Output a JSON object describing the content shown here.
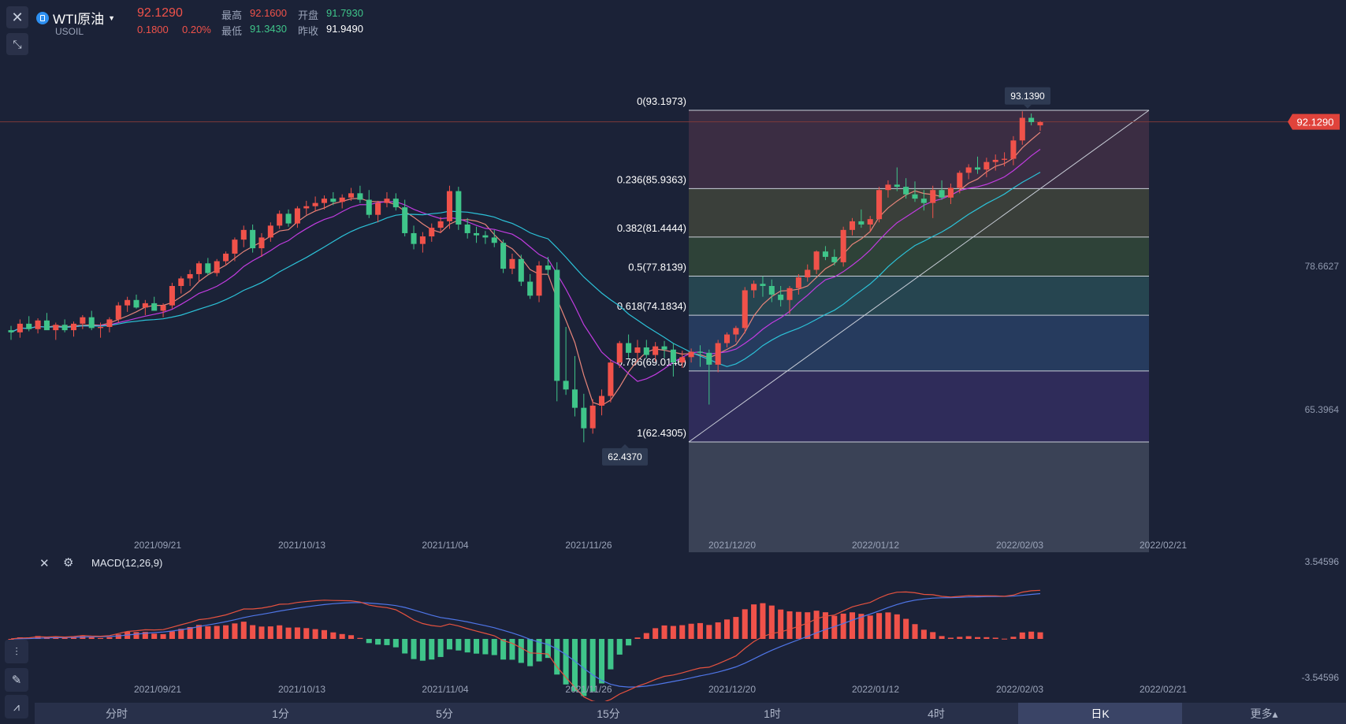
{
  "header": {
    "symbol": "WTI原油",
    "code": "USOIL",
    "price": "92.1290",
    "change": "0.1800",
    "change_pct": "0.20%",
    "high_label": "最高",
    "high": "92.1600",
    "open_label": "开盘",
    "open": "91.7930",
    "low_label": "最低",
    "low": "91.3430",
    "prev_label": "昨收",
    "prev": "91.9490"
  },
  "colors": {
    "background": "#1b2237",
    "up": "#f0524a",
    "down": "#3fc58a",
    "ma_fast": "#e7857a",
    "ma_mid": "#c13ce0",
    "ma_slow": "#2cc2d8",
    "macd_dif": "#e6523f",
    "macd_dea": "#4f76e8"
  },
  "fib": {
    "levels": [
      {
        "label": "0(93.1973)",
        "value": 93.1973
      },
      {
        "label": "0.236(85.9363)",
        "value": 85.9363
      },
      {
        "label": "0.382(81.4444)",
        "value": 81.4444
      },
      {
        "label": "0.5(77.8139)",
        "value": 77.8139
      },
      {
        "label": "0.618(74.1834)",
        "value": 74.1834
      },
      {
        "label": "0.786(69.0146)",
        "value": 69.0146
      },
      {
        "label": "1(62.4305)",
        "value": 62.4305
      }
    ]
  },
  "annotations": {
    "high_marker": "93.1390",
    "low_marker": "62.4370",
    "last_price_tag": "92.1290"
  },
  "price_axis": {
    "ticks": [
      "78.6627",
      "65.3964"
    ]
  },
  "macd": {
    "title": "MACD(12,26,9)",
    "axis_top": "3.54596",
    "axis_bottom": "-3.54596"
  },
  "date_axis": [
    "2021/09/21",
    "2021/10/13",
    "2021/11/04",
    "2021/11/26",
    "2021/12/20",
    "2022/01/12",
    "2022/02/03",
    "2022/02/21"
  ],
  "timeframes": [
    "分时",
    "1分",
    "5分",
    "15分",
    "1时",
    "4时",
    "日K",
    "更多▴"
  ],
  "active_timeframe": "日K",
  "chart_data": {
    "type": "candlestick",
    "series": [
      {
        "name": "USOIL",
        "values": [
          [
            72.8,
            73.2,
            71.9,
            72.6
          ],
          [
            72.6,
            73.8,
            72.1,
            73.4
          ],
          [
            73.4,
            74.1,
            72.7,
            72.9
          ],
          [
            72.9,
            73.9,
            72.5,
            73.7
          ],
          [
            73.7,
            74.4,
            72.9,
            72.8
          ],
          [
            72.8,
            73.5,
            71.9,
            73.3
          ],
          [
            73.3,
            73.8,
            72.6,
            72.8
          ],
          [
            72.8,
            73.6,
            72.2,
            73.4
          ],
          [
            73.4,
            74.2,
            72.9,
            74.0
          ],
          [
            74.0,
            74.6,
            72.8,
            73.0
          ],
          [
            73.0,
            73.5,
            72.1,
            73.1
          ],
          [
            73.1,
            74.0,
            72.6,
            73.8
          ],
          [
            73.8,
            75.4,
            73.5,
            75.1
          ],
          [
            75.1,
            75.9,
            74.5,
            75.6
          ],
          [
            75.6,
            76.1,
            74.8,
            74.9
          ],
          [
            74.9,
            75.6,
            74.2,
            75.3
          ],
          [
            75.3,
            75.9,
            74.7,
            74.6
          ],
          [
            74.6,
            75.3,
            74.0,
            75.1
          ],
          [
            75.1,
            77.2,
            74.8,
            76.9
          ],
          [
            76.9,
            77.8,
            76.2,
            77.6
          ],
          [
            77.6,
            78.4,
            76.9,
            78.0
          ],
          [
            78.0,
            79.2,
            77.3,
            79.0
          ],
          [
            79.0,
            79.5,
            77.9,
            78.1
          ],
          [
            78.1,
            79.4,
            77.8,
            79.2
          ],
          [
            79.2,
            80.1,
            78.8,
            79.9
          ],
          [
            79.9,
            81.4,
            79.2,
            81.2
          ],
          [
            81.2,
            82.5,
            80.5,
            82.1
          ],
          [
            82.1,
            82.6,
            80.0,
            80.4
          ],
          [
            80.4,
            81.8,
            79.6,
            81.4
          ],
          [
            81.4,
            82.8,
            81.0,
            82.5
          ],
          [
            82.5,
            83.9,
            82.2,
            83.6
          ],
          [
            83.6,
            84.0,
            82.4,
            82.7
          ],
          [
            82.7,
            84.3,
            82.3,
            84.1
          ],
          [
            84.1,
            84.8,
            83.5,
            84.3
          ],
          [
            84.3,
            85.2,
            83.8,
            84.6
          ],
          [
            84.6,
            85.3,
            84.0,
            85.0
          ],
          [
            85.0,
            85.6,
            84.4,
            84.7
          ],
          [
            84.7,
            85.4,
            84.1,
            85.1
          ],
          [
            85.1,
            86.0,
            84.8,
            85.5
          ],
          [
            85.5,
            86.2,
            84.6,
            84.9
          ],
          [
            84.9,
            85.8,
            83.2,
            83.5
          ],
          [
            83.5,
            84.8,
            82.8,
            84.6
          ],
          [
            84.6,
            85.6,
            84.2,
            85.0
          ],
          [
            85.0,
            85.5,
            83.9,
            84.2
          ],
          [
            84.2,
            84.9,
            81.5,
            81.8
          ],
          [
            81.8,
            82.5,
            80.3,
            80.8
          ],
          [
            80.8,
            81.9,
            80.0,
            81.5
          ],
          [
            81.5,
            82.7,
            81.0,
            82.3
          ],
          [
            82.3,
            83.3,
            81.8,
            82.9
          ],
          [
            82.9,
            86.2,
            82.2,
            85.7
          ],
          [
            85.7,
            86.1,
            82.1,
            82.6
          ],
          [
            82.6,
            83.2,
            81.3,
            81.8
          ],
          [
            81.8,
            82.4,
            80.9,
            81.6
          ],
          [
            81.6,
            82.0,
            80.8,
            81.4
          ],
          [
            81.4,
            82.1,
            80.5,
            80.9
          ],
          [
            80.9,
            81.2,
            78.1,
            78.5
          ],
          [
            78.5,
            79.9,
            78.0,
            79.4
          ],
          [
            79.4,
            79.8,
            76.9,
            77.3
          ],
          [
            77.3,
            78.0,
            75.7,
            76.0
          ],
          [
            76.0,
            79.2,
            75.4,
            78.8
          ],
          [
            78.8,
            79.6,
            77.9,
            78.4
          ],
          [
            78.4,
            79.1,
            66.2,
            68.1
          ],
          [
            68.1,
            73.1,
            66.8,
            67.3
          ],
          [
            67.3,
            70.4,
            64.8,
            65.6
          ],
          [
            65.6,
            66.9,
            62.4,
            63.7
          ],
          [
            63.7,
            66.4,
            63.2,
            65.8
          ],
          [
            65.8,
            67.3,
            64.9,
            66.7
          ],
          [
            66.7,
            70.1,
            66.1,
            69.8
          ],
          [
            69.8,
            71.8,
            69.3,
            71.6
          ],
          [
            71.6,
            72.4,
            70.2,
            70.7
          ],
          [
            70.7,
            71.9,
            69.9,
            71.2
          ],
          [
            71.2,
            71.9,
            70.2,
            70.5
          ],
          [
            70.5,
            71.7,
            69.9,
            71.3
          ],
          [
            71.3,
            71.8,
            70.2,
            71.0
          ],
          [
            71.0,
            71.6,
            68.5,
            69.8
          ],
          [
            69.8,
            70.9,
            69.3,
            70.3
          ],
          [
            70.3,
            71.1,
            69.8,
            70.8
          ],
          [
            70.8,
            71.4,
            69.4,
            70.7
          ],
          [
            70.7,
            71.0,
            65.9,
            69.6
          ],
          [
            69.6,
            71.9,
            68.9,
            71.6
          ],
          [
            71.6,
            72.6,
            71.2,
            72.4
          ],
          [
            72.4,
            73.2,
            71.7,
            73.0
          ],
          [
            73.0,
            76.8,
            72.5,
            76.5
          ],
          [
            76.5,
            77.4,
            75.8,
            77.1
          ],
          [
            77.1,
            77.8,
            75.9,
            76.9
          ],
          [
            76.9,
            77.5,
            75.4,
            76.1
          ],
          [
            76.1,
            76.9,
            75.0,
            75.6
          ],
          [
            75.6,
            76.9,
            74.3,
            76.7
          ],
          [
            76.7,
            78.0,
            76.1,
            77.7
          ],
          [
            77.7,
            78.9,
            77.3,
            78.4
          ],
          [
            78.4,
            80.2,
            78.0,
            80.1
          ],
          [
            80.1,
            80.6,
            79.3,
            79.6
          ],
          [
            79.6,
            80.3,
            78.8,
            79.1
          ],
          [
            79.1,
            82.4,
            78.7,
            82.1
          ],
          [
            82.1,
            83.2,
            81.6,
            82.9
          ],
          [
            82.9,
            84.0,
            82.3,
            82.6
          ],
          [
            82.6,
            83.4,
            81.9,
            83.1
          ],
          [
            83.1,
            86.1,
            82.8,
            85.8
          ],
          [
            85.8,
            86.7,
            85.1,
            86.3
          ],
          [
            86.3,
            87.9,
            85.7,
            86.1
          ],
          [
            86.1,
            86.9,
            85.0,
            85.4
          ],
          [
            85.4,
            86.6,
            84.7,
            85.0
          ],
          [
            85.0,
            85.8,
            83.9,
            84.6
          ],
          [
            84.6,
            86.2,
            83.2,
            85.8
          ],
          [
            85.8,
            86.7,
            84.9,
            85.1
          ],
          [
            85.1,
            86.4,
            84.5,
            86.0
          ],
          [
            86.0,
            87.6,
            85.5,
            87.4
          ],
          [
            87.4,
            88.2,
            86.8,
            87.9
          ],
          [
            87.9,
            88.9,
            87.3,
            87.7
          ],
          [
            87.7,
            88.8,
            87.0,
            88.4
          ],
          [
            88.4,
            89.1,
            87.6,
            88.6
          ],
          [
            88.6,
            89.3,
            88.0,
            88.7
          ],
          [
            88.7,
            90.8,
            88.1,
            90.4
          ],
          [
            90.4,
            93.1,
            90.0,
            92.5
          ],
          [
            92.5,
            92.9,
            91.8,
            92.1
          ],
          [
            91.8,
            92.2,
            91.3,
            92.1
          ]
        ]
      }
    ],
    "fib_range": [
      62.4305,
      93.1973
    ],
    "macd_range": [
      -3.54596,
      3.54596
    ],
    "xlabel": "",
    "ylabel": ""
  }
}
